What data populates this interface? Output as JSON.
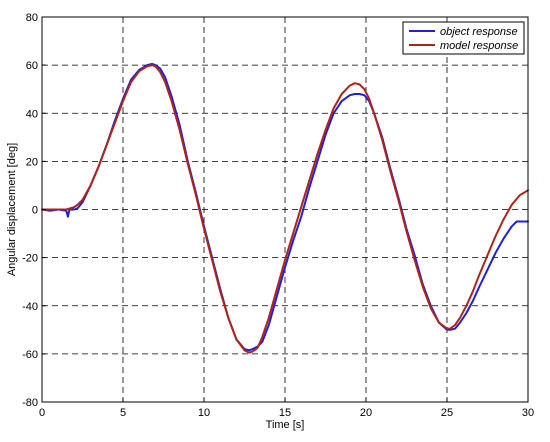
{
  "chart_data": {
    "type": "line",
    "title": "",
    "xlabel": "Time [s]",
    "ylabel": "Angular displacement [deg]",
    "xlim": [
      0,
      30
    ],
    "ylim": [
      -80,
      80
    ],
    "xticks": [
      0,
      5,
      10,
      15,
      20,
      25,
      30
    ],
    "yticks": [
      80,
      60,
      40,
      20,
      0,
      -20,
      -40,
      -60,
      -80
    ],
    "grid": true,
    "legend_position": "top-right",
    "series": [
      {
        "name": "object response",
        "color": "#1f1fe0",
        "x": [
          0,
          0.5,
          1.0,
          1.5,
          1.6,
          1.7,
          2.0,
          2.2,
          2.5,
          3.0,
          3.5,
          4.0,
          4.5,
          5.0,
          5.5,
          6.0,
          6.5,
          6.8,
          7.0,
          7.3,
          7.6,
          8.0,
          8.5,
          9.0,
          9.5,
          10.0,
          10.5,
          11.0,
          11.5,
          12.0,
          12.5,
          12.8,
          13.0,
          13.3,
          13.6,
          14.0,
          14.5,
          15.0,
          15.5,
          16.0,
          16.5,
          17.0,
          17.5,
          18.0,
          18.5,
          19.0,
          19.3,
          19.6,
          19.9,
          20.2,
          20.5,
          21.0,
          21.5,
          22.0,
          22.5,
          23.0,
          23.5,
          24.0,
          24.5,
          25.0,
          25.2,
          25.5,
          25.8,
          26.2,
          26.6,
          27.0,
          27.5,
          28.0,
          28.5,
          29.0,
          29.3,
          29.6,
          30.0
        ],
        "y": [
          0,
          -0.5,
          0,
          -0.5,
          -3,
          0,
          0,
          0.5,
          3,
          10,
          18,
          27,
          37,
          46,
          54,
          58,
          60,
          60.5,
          60,
          58.5,
          55,
          47,
          35,
          20,
          7,
          -7,
          -20,
          -33,
          -45,
          -54,
          -58,
          -58.5,
          -58,
          -57,
          -55,
          -48,
          -36,
          -24,
          -13,
          -3,
          9,
          20,
          31,
          40,
          45,
          47.5,
          48,
          48,
          47.5,
          45,
          40,
          30,
          17,
          5,
          -8,
          -19,
          -31,
          -40,
          -47,
          -50,
          -50,
          -49.5,
          -47,
          -43,
          -38,
          -32,
          -25,
          -18,
          -12,
          -7,
          -5,
          -5,
          -5
        ]
      },
      {
        "name": "model response",
        "color": "#b02418",
        "x": [
          0,
          0.5,
          1.0,
          1.5,
          2.0,
          2.2,
          2.5,
          3.0,
          3.5,
          4.0,
          4.5,
          5.0,
          5.5,
          6.0,
          6.5,
          6.8,
          7.0,
          7.3,
          7.6,
          8.0,
          8.5,
          9.0,
          9.5,
          10.0,
          10.5,
          11.0,
          11.5,
          12.0,
          12.5,
          12.8,
          13.0,
          13.3,
          13.6,
          14.0,
          14.5,
          15.0,
          15.5,
          16.0,
          16.5,
          17.0,
          17.5,
          18.0,
          18.5,
          19.0,
          19.3,
          19.6,
          19.9,
          20.2,
          20.5,
          21.0,
          21.5,
          22.0,
          22.5,
          23.0,
          23.5,
          24.0,
          24.5,
          25.0,
          25.2,
          25.5,
          25.8,
          26.2,
          26.6,
          27.0,
          27.5,
          28.0,
          28.5,
          29.0,
          29.5,
          30.0
        ],
        "y": [
          0,
          0,
          0,
          0,
          1,
          2,
          4,
          10,
          18,
          27,
          36,
          45,
          53,
          57.5,
          59.5,
          60,
          59.5,
          57,
          53,
          45,
          33,
          19,
          6,
          -8,
          -21,
          -34,
          -45,
          -54,
          -58.5,
          -59.5,
          -59,
          -57.5,
          -53,
          -45,
          -33,
          -21,
          -10,
          1,
          12,
          23,
          33,
          42,
          48,
          51.5,
          52.5,
          52,
          50,
          46,
          40,
          29,
          16,
          4,
          -9,
          -21,
          -32,
          -41,
          -47,
          -49.5,
          -49.5,
          -48,
          -45,
          -40,
          -34,
          -27,
          -19,
          -11,
          -4,
          2,
          6,
          8
        ]
      }
    ]
  }
}
